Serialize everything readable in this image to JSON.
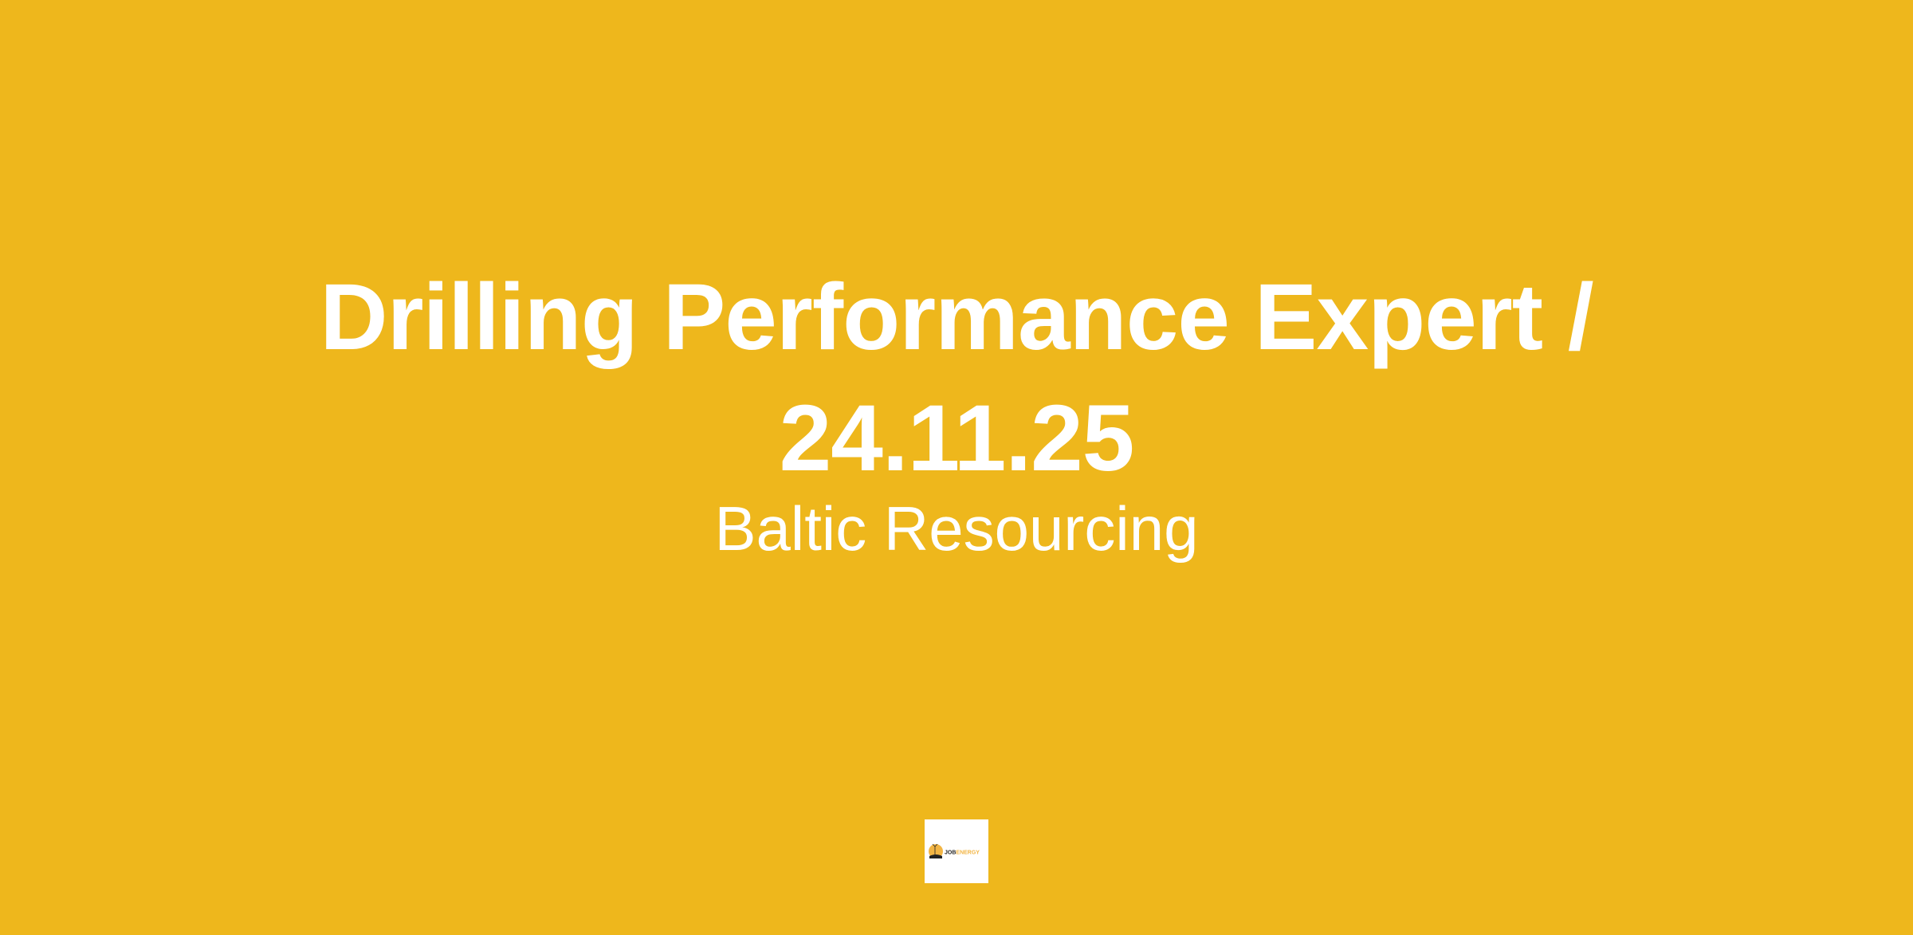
{
  "page": {
    "title_line1": "Drilling Performance Expert /",
    "title_line2": "24.11.25",
    "company": "Baltic Resourcing",
    "background_color": "#EEB71C"
  },
  "logo": {
    "text_part1": "JOB",
    "text_part2": "ENERGY",
    "icon": "wind-turbine-sun-icon"
  }
}
